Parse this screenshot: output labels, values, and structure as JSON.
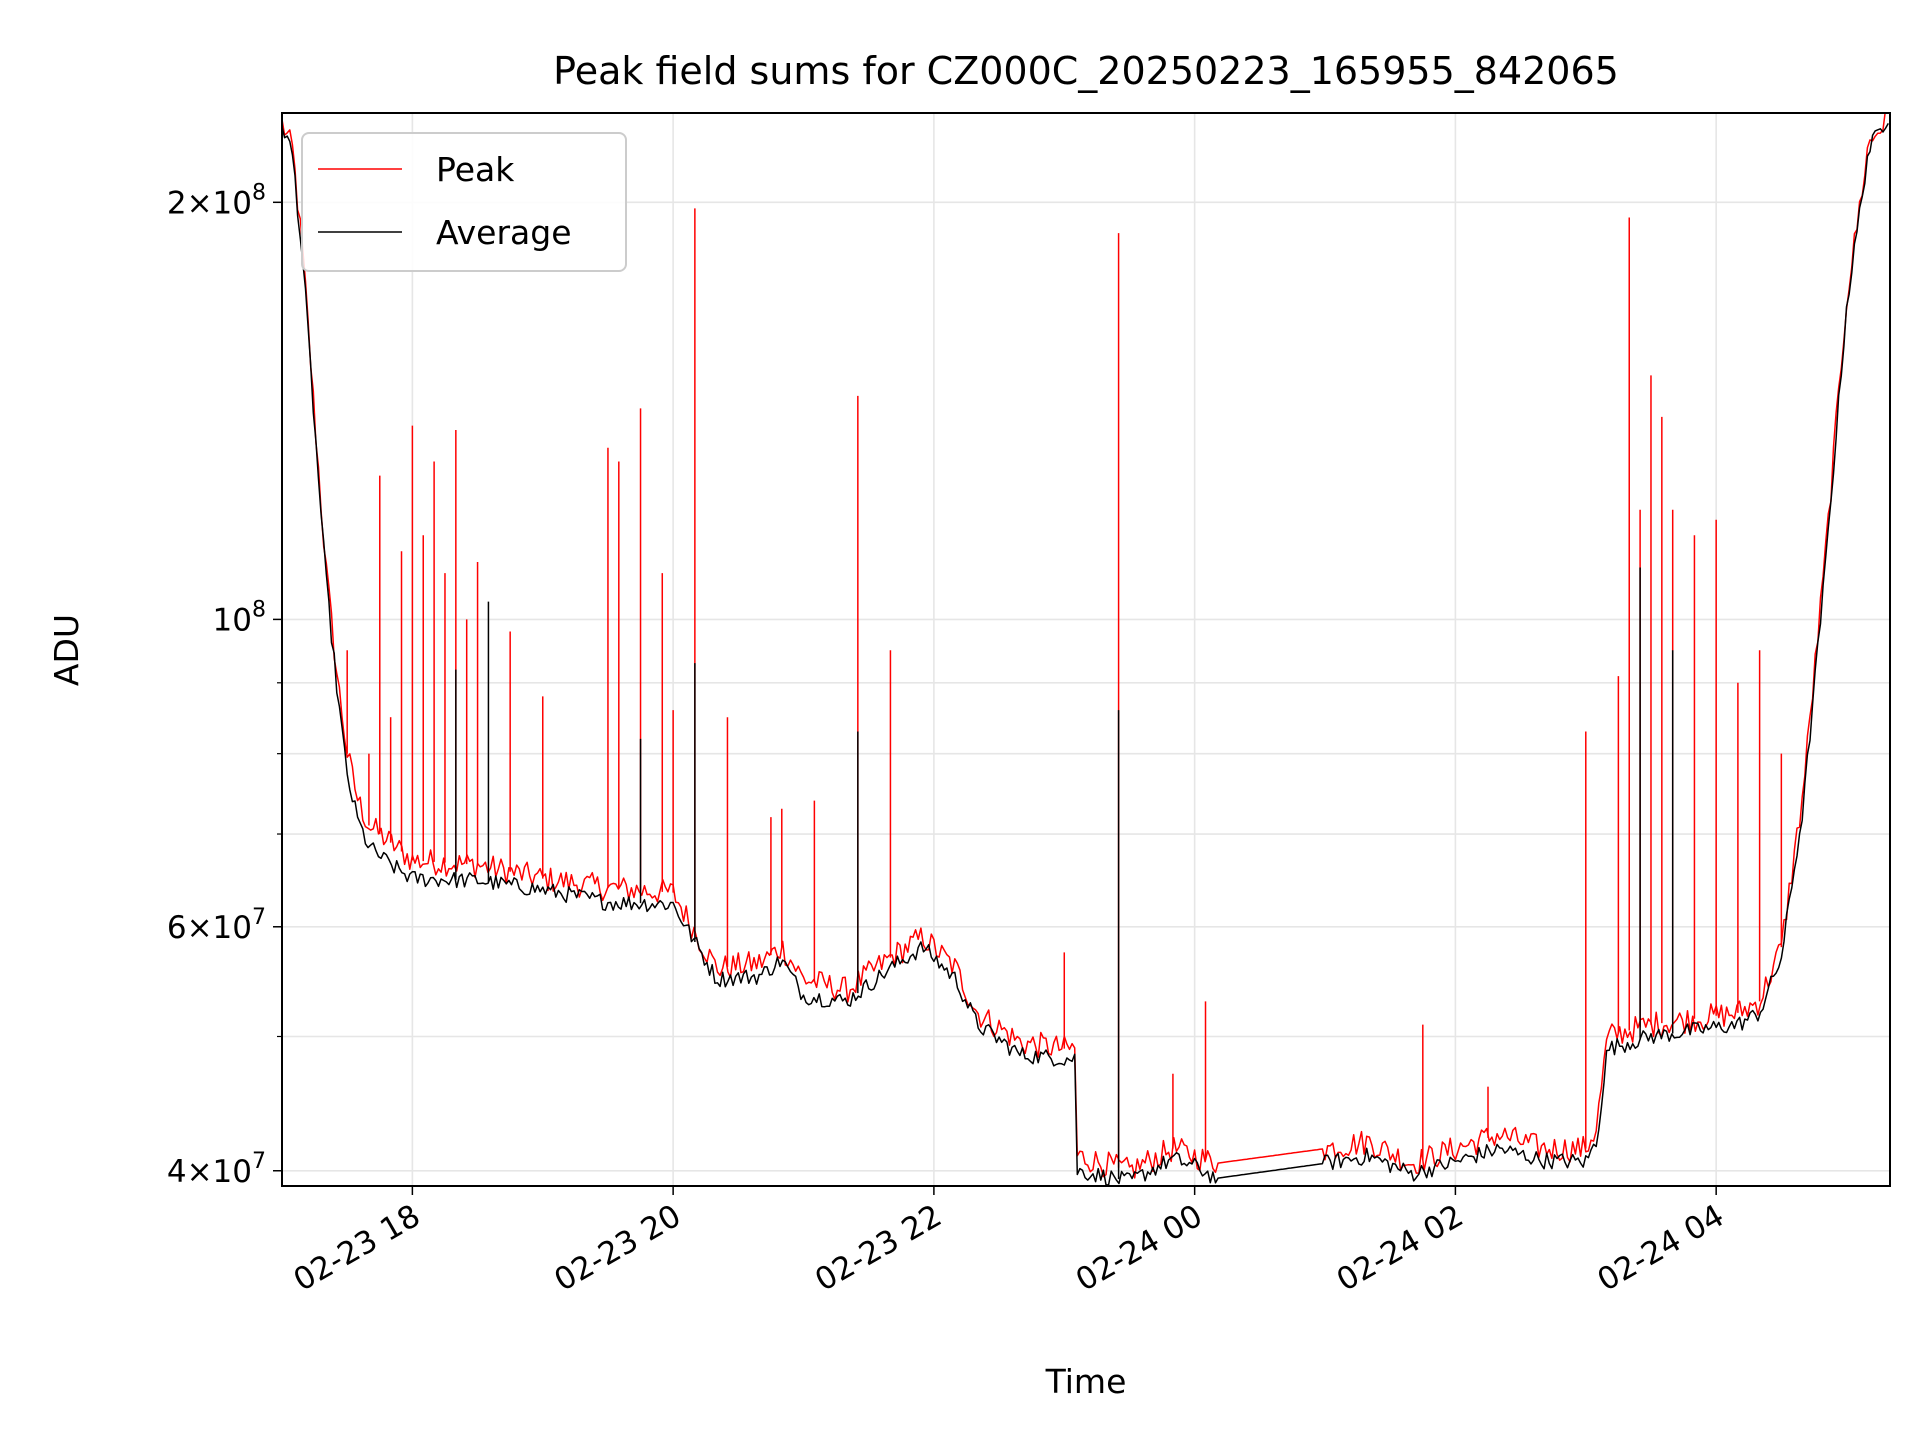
{
  "chart_data": {
    "type": "line",
    "title": "Peak field sums for CZ000C_20250223_165955_842065",
    "xlabel": "Time",
    "ylabel": "ADU",
    "yscale": "log",
    "xlim": [
      "2025-02-23 17:00",
      "2025-02-24 05:20"
    ],
    "ylim": [
      39000000,
      232000000
    ],
    "grid": true,
    "legend": "top-left",
    "x_ticks": [
      {
        "t": "2025-02-23 18:00",
        "label": "02-23 18"
      },
      {
        "t": "2025-02-23 20:00",
        "label": "02-23 20"
      },
      {
        "t": "2025-02-23 22:00",
        "label": "02-23 22"
      },
      {
        "t": "2025-02-24 00:00",
        "label": "02-24 00"
      },
      {
        "t": "2025-02-24 02:00",
        "label": "02-24 02"
      },
      {
        "t": "2025-02-24 04:00",
        "label": "02-24 04"
      }
    ],
    "y_ticks": [
      {
        "value": 40000000,
        "base": "4",
        "exp": "7"
      },
      {
        "value": 60000000,
        "base": "6",
        "exp": "7"
      },
      {
        "value": 100000000,
        "base": "",
        "exp": "8"
      },
      {
        "value": 200000000,
        "base": "2",
        "exp": "8"
      }
    ],
    "series": [
      {
        "name": "Peak",
        "color": "#ff0000",
        "points": [
          [
            "2025-02-23 17:00",
            228000000
          ],
          [
            "2025-02-23 17:05",
            218000000
          ],
          [
            "2025-02-23 17:10",
            180000000
          ],
          [
            "2025-02-23 17:15",
            140000000
          ],
          [
            "2025-02-23 17:20",
            110000000
          ],
          [
            "2025-02-23 17:25",
            92000000
          ],
          [
            "2025-02-23 17:30",
            80000000
          ],
          [
            "2025-02-23 17:35",
            74000000
          ],
          [
            "2025-02-23 17:40",
            71000000
          ],
          [
            "2025-02-23 17:50",
            69000000
          ],
          [
            "2025-02-23 18:00",
            67000000
          ],
          [
            "2025-02-23 18:30",
            66500000
          ],
          [
            "2025-02-23 19:00",
            65000000
          ],
          [
            "2025-02-23 19:30",
            64000000
          ],
          [
            "2025-02-23 20:00",
            63500000
          ],
          [
            "2025-02-23 20:10",
            59500000
          ],
          [
            "2025-02-23 20:20",
            56000000
          ],
          [
            "2025-02-23 20:40",
            56500000
          ],
          [
            "2025-02-23 20:50",
            58000000
          ],
          [
            "2025-02-23 21:00",
            55000000
          ],
          [
            "2025-02-23 21:20",
            54000000
          ],
          [
            "2025-02-23 21:40",
            57000000
          ],
          [
            "2025-02-23 21:55",
            59000000
          ],
          [
            "2025-02-23 22:10",
            56000000
          ],
          [
            "2025-02-23 22:20",
            52000000
          ],
          [
            "2025-02-23 22:40",
            49500000
          ],
          [
            "2025-02-23 23:00",
            49000000
          ],
          [
            "2025-02-23 23:05",
            49000000
          ],
          [
            "2025-02-23 23:06",
            41000000
          ],
          [
            "2025-02-23 23:30",
            40000000
          ],
          [
            "2025-02-23 23:50",
            41500000
          ],
          [
            "2025-02-24 00:00",
            41000000
          ],
          [
            "2025-02-24 00:10",
            40500000
          ],
          [
            "2025-02-24 01:00",
            41500000
          ],
          [
            "2025-02-24 01:20",
            42000000
          ],
          [
            "2025-02-24 01:40",
            40500000
          ],
          [
            "2025-02-24 02:00",
            41500000
          ],
          [
            "2025-02-24 02:20",
            42500000
          ],
          [
            "2025-02-24 02:40",
            41500000
          ],
          [
            "2025-02-24 03:00",
            41500000
          ],
          [
            "2025-02-24 03:05",
            43000000
          ],
          [
            "2025-02-24 03:10",
            50000000
          ],
          [
            "2025-02-24 03:30",
            51000000
          ],
          [
            "2025-02-24 03:50",
            51500000
          ],
          [
            "2025-02-24 04:10",
            52000000
          ],
          [
            "2025-02-24 04:20",
            53000000
          ],
          [
            "2025-02-24 04:30",
            58000000
          ],
          [
            "2025-02-24 04:40",
            75000000
          ],
          [
            "2025-02-24 04:50",
            110000000
          ],
          [
            "2025-02-24 05:00",
            170000000
          ],
          [
            "2025-02-24 05:10",
            220000000
          ],
          [
            "2025-02-24 05:20",
            232000000
          ]
        ],
        "spikes": [
          [
            "2025-02-23 17:30",
            95000000
          ],
          [
            "2025-02-23 17:40",
            80000000
          ],
          [
            "2025-02-23 17:45",
            127000000
          ],
          [
            "2025-02-23 17:50",
            85000000
          ],
          [
            "2025-02-23 17:55",
            112000000
          ],
          [
            "2025-02-23 18:00",
            138000000
          ],
          [
            "2025-02-23 18:05",
            115000000
          ],
          [
            "2025-02-23 18:10",
            130000000
          ],
          [
            "2025-02-23 18:15",
            108000000
          ],
          [
            "2025-02-23 18:20",
            137000000
          ],
          [
            "2025-02-23 18:25",
            100000000
          ],
          [
            "2025-02-23 18:30",
            110000000
          ],
          [
            "2025-02-23 18:45",
            98000000
          ],
          [
            "2025-02-23 19:00",
            88000000
          ],
          [
            "2025-02-23 19:30",
            133000000
          ],
          [
            "2025-02-23 19:35",
            130000000
          ],
          [
            "2025-02-23 19:45",
            142000000
          ],
          [
            "2025-02-23 19:55",
            108000000
          ],
          [
            "2025-02-23 20:00",
            86000000
          ],
          [
            "2025-02-23 20:10",
            198000000
          ],
          [
            "2025-02-23 20:25",
            85000000
          ],
          [
            "2025-02-23 20:45",
            72000000
          ],
          [
            "2025-02-23 20:50",
            73000000
          ],
          [
            "2025-02-23 21:05",
            74000000
          ],
          [
            "2025-02-23 21:25",
            145000000
          ],
          [
            "2025-02-23 21:40",
            95000000
          ],
          [
            "2025-02-23 23:00",
            57500000
          ],
          [
            "2025-02-23 23:25",
            190000000
          ],
          [
            "2025-02-23 23:50",
            47000000
          ],
          [
            "2025-02-24 00:05",
            53000000
          ],
          [
            "2025-02-24 01:45",
            51000000
          ],
          [
            "2025-02-24 02:15",
            46000000
          ],
          [
            "2025-02-24 03:00",
            83000000
          ],
          [
            "2025-02-24 03:15",
            91000000
          ],
          [
            "2025-02-24 03:20",
            195000000
          ],
          [
            "2025-02-24 03:25",
            120000000
          ],
          [
            "2025-02-24 03:30",
            150000000
          ],
          [
            "2025-02-24 03:35",
            140000000
          ],
          [
            "2025-02-24 03:40",
            120000000
          ],
          [
            "2025-02-24 03:50",
            115000000
          ],
          [
            "2025-02-24 04:00",
            118000000
          ],
          [
            "2025-02-24 04:10",
            90000000
          ],
          [
            "2025-02-24 04:20",
            95000000
          ],
          [
            "2025-02-24 04:30",
            80000000
          ]
        ]
      },
      {
        "name": "Average",
        "color": "#000000",
        "points": [
          [
            "2025-02-23 17:00",
            228000000
          ],
          [
            "2025-02-23 17:05",
            216000000
          ],
          [
            "2025-02-23 17:10",
            178000000
          ],
          [
            "2025-02-23 17:15",
            138000000
          ],
          [
            "2025-02-23 17:20",
            108000000
          ],
          [
            "2025-02-23 17:25",
            90000000
          ],
          [
            "2025-02-23 17:30",
            77000000
          ],
          [
            "2025-02-23 17:35",
            71500000
          ],
          [
            "2025-02-23 17:40",
            68500000
          ],
          [
            "2025-02-23 17:50",
            66500000
          ],
          [
            "2025-02-23 18:00",
            65000000
          ],
          [
            "2025-02-23 18:30",
            64800000
          ],
          [
            "2025-02-23 19:00",
            63800000
          ],
          [
            "2025-02-23 19:30",
            62500000
          ],
          [
            "2025-02-23 20:00",
            62300000
          ],
          [
            "2025-02-23 20:10",
            58500000
          ],
          [
            "2025-02-23 20:20",
            55000000
          ],
          [
            "2025-02-23 20:40",
            55300000
          ],
          [
            "2025-02-23 20:50",
            56800000
          ],
          [
            "2025-02-23 21:00",
            53500000
          ],
          [
            "2025-02-23 21:20",
            53000000
          ],
          [
            "2025-02-23 21:40",
            56000000
          ],
          [
            "2025-02-23 21:55",
            58000000
          ],
          [
            "2025-02-23 22:10",
            55000000
          ],
          [
            "2025-02-23 22:20",
            51000000
          ],
          [
            "2025-02-23 22:40",
            48500000
          ],
          [
            "2025-02-23 23:00",
            48200000
          ],
          [
            "2025-02-23 23:05",
            48200000
          ],
          [
            "2025-02-23 23:06",
            40000000
          ],
          [
            "2025-02-23 23:30",
            39300000
          ],
          [
            "2025-02-23 23:50",
            40800000
          ],
          [
            "2025-02-24 00:00",
            40300000
          ],
          [
            "2025-02-24 00:10",
            39500000
          ],
          [
            "2025-02-24 01:00",
            40500000
          ],
          [
            "2025-02-24 01:20",
            41000000
          ],
          [
            "2025-02-24 01:40",
            39800000
          ],
          [
            "2025-02-24 02:00",
            40600000
          ],
          [
            "2025-02-24 02:20",
            41500000
          ],
          [
            "2025-02-24 02:40",
            40700000
          ],
          [
            "2025-02-24 03:00",
            40600000
          ],
          [
            "2025-02-24 03:05",
            42000000
          ],
          [
            "2025-02-24 03:10",
            49000000
          ],
          [
            "2025-02-24 03:30",
            50000000
          ],
          [
            "2025-02-24 03:50",
            50500000
          ],
          [
            "2025-02-24 04:10",
            51000000
          ],
          [
            "2025-02-24 04:20",
            52000000
          ],
          [
            "2025-02-24 04:30",
            57000000
          ],
          [
            "2025-02-24 04:40",
            73000000
          ],
          [
            "2025-02-24 04:50",
            108000000
          ],
          [
            "2025-02-24 05:00",
            168000000
          ],
          [
            "2025-02-24 05:10",
            218000000
          ],
          [
            "2025-02-24 05:20",
            232000000
          ]
        ],
        "spikes": [
          [
            "2025-02-23 18:20",
            92000000
          ],
          [
            "2025-02-23 18:35",
            103000000
          ],
          [
            "2025-02-23 19:45",
            82000000
          ],
          [
            "2025-02-23 20:10",
            93000000
          ],
          [
            "2025-02-23 21:25",
            83000000
          ],
          [
            "2025-02-23 23:25",
            86000000
          ],
          [
            "2025-02-24 03:25",
            109000000
          ],
          [
            "2025-02-24 03:40",
            95000000
          ]
        ]
      }
    ]
  }
}
